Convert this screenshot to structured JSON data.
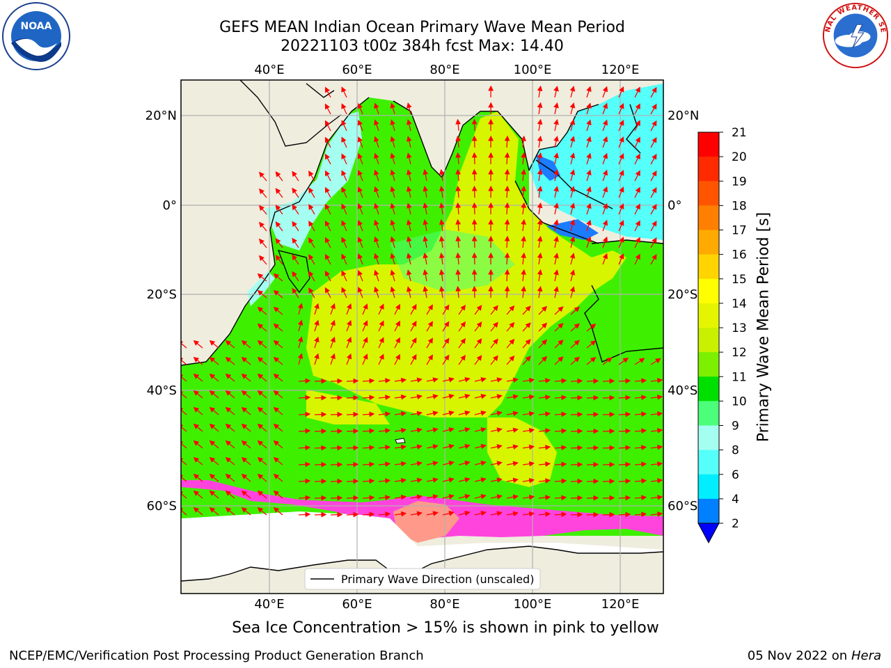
{
  "title": {
    "line1": "GEFS MEAN Indian Ocean Primary Wave Mean Period",
    "line2": "20221103 t00z 384h fcst   Max: 14.40"
  },
  "logos": {
    "left": {
      "icon": "noaa-logo-icon",
      "text": "NOAA"
    },
    "right": {
      "icon": "nws-logo-icon",
      "text": "NATIONAL WEATHER SERVICE"
    }
  },
  "map": {
    "lon_ticks_top": [
      "40°E",
      "60°E",
      "80°E",
      "100°E",
      "120°E"
    ],
    "lon_ticks_bottom": [
      "40°E",
      "60°E",
      "80°E",
      "100°E",
      "120°E"
    ],
    "lat_ticks_left": [
      "20°N",
      "0°",
      "20°S",
      "40°S",
      "60°S"
    ],
    "lat_ticks_right": [
      "20°N",
      "0°",
      "20°S",
      "40°S",
      "60°S"
    ],
    "legend": "Primary Wave Direction (unscaled)",
    "colors": {
      "land": "#efedde",
      "arrow": "#ff0000",
      "ice": "#ff44dd",
      "grid": "#b0b0b0"
    }
  },
  "colorbar": {
    "label": "Primary Wave Mean Period [s]",
    "tick_labels": [
      "21",
      "20",
      "19",
      "18",
      "17",
      "16",
      "15",
      "14",
      "13",
      "12",
      "11",
      "10",
      "9",
      "8",
      "6",
      "4",
      "2"
    ],
    "colors": [
      "#ff0000",
      "#ff2a00",
      "#ff5500",
      "#ff7f00",
      "#ffaa00",
      "#ffd400",
      "#ffff00",
      "#e5f500",
      "#c8f000",
      "#7df000",
      "#00e000",
      "#4cff7a",
      "#a5fff0",
      "#55fffa",
      "#00eeff",
      "#007fff",
      "#0000ff"
    ]
  },
  "caption": "Sea Ice Concentration > 15% is shown in pink to yellow",
  "footer": {
    "left": "NCEP/EMC/Verification Post Processing Product Generation Branch",
    "right_date": "05 Nov 2022 on",
    "right_machine": "Hera"
  }
}
